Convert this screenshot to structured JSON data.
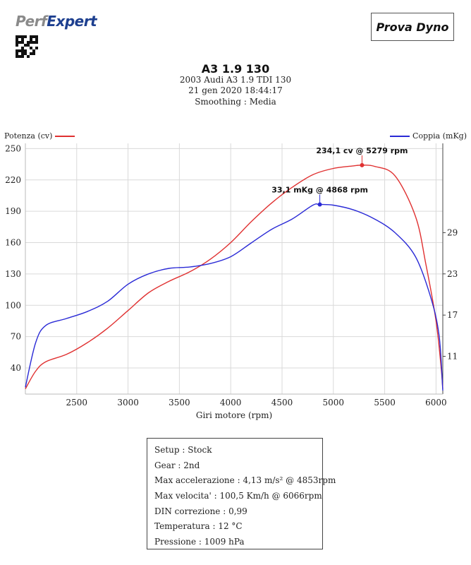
{
  "header": {
    "logo_part1": "Perf",
    "logo_part2": "Expert",
    "badge": "Prova Dyno",
    "title": "A3 1.9 130",
    "vehicle": "2003 Audi A3 1.9 TDI 130",
    "datetime": "21 gen 2020 18:44:17",
    "smoothing": "Smoothing : Media"
  },
  "colors": {
    "power": "#e03131",
    "torque": "#2a2ad6",
    "grid": "#d9d9d9"
  },
  "chart_data": {
    "type": "line",
    "xlabel": "Giri motore (rpm)",
    "x_ticks": [
      2500,
      3000,
      3500,
      4000,
      4500,
      5000,
      5500,
      6000
    ],
    "xlim": [
      2000,
      6066
    ],
    "y_left": {
      "label": "Potenza (cv)",
      "ticks": [
        40,
        70,
        100,
        130,
        160,
        190,
        220,
        250
      ],
      "ylim": [
        15,
        255
      ]
    },
    "y_right": {
      "label": "Coppia (mKg)",
      "ticks": [
        11,
        17,
        23,
        29
      ],
      "ylim": [
        5.5,
        42
      ]
    },
    "series": [
      {
        "name": "Potenza (cv)",
        "axis": "left",
        "x": [
          2000,
          2100,
          2200,
          2400,
          2600,
          2800,
          3000,
          3200,
          3400,
          3600,
          3800,
          4000,
          4200,
          4400,
          4600,
          4800,
          5000,
          5200,
          5279,
          5400,
          5600,
          5800,
          5900,
          6000,
          6050,
          6066
        ],
        "y": [
          20,
          37,
          46,
          53,
          64,
          78,
          95,
          112,
          123,
          132,
          144,
          160,
          180,
          198,
          213,
          225,
          231,
          233.5,
          234.1,
          233,
          224,
          185,
          140,
          85,
          40,
          20
        ]
      },
      {
        "name": "Coppia (mKg)",
        "axis": "right",
        "x": [
          2000,
          2100,
          2200,
          2400,
          2600,
          2800,
          3000,
          3200,
          3400,
          3600,
          3800,
          4000,
          4200,
          4400,
          4600,
          4800,
          4868,
          5000,
          5200,
          5400,
          5600,
          5800,
          5950,
          6030,
          6066
        ],
        "y": [
          6.5,
          13,
          15.5,
          16.5,
          17.5,
          19,
          21.5,
          23,
          23.8,
          24,
          24.5,
          25.5,
          27.5,
          29.5,
          31,
          33,
          33.1,
          33,
          32.3,
          31,
          29,
          25.5,
          19.5,
          14,
          6
        ]
      }
    ],
    "markers": [
      {
        "series": "Potenza (cv)",
        "x": 5279,
        "y": 234.1,
        "label": "234,1 cv @ 5279 rpm"
      },
      {
        "series": "Coppia (mKg)",
        "x": 4868,
        "y": 33.1,
        "label": "33,1 mKg @ 4868 rpm"
      }
    ],
    "grid": true
  },
  "info": [
    "Setup : Stock",
    "Gear : 2nd",
    "Max accelerazione : 4,13 m/s² @ 4853rpm",
    "Max velocita' : 100,5 Km/h @ 6066rpm",
    "DIN correzione : 0,99",
    "Temperatura : 12 °C",
    "Pressione : 1009 hPa"
  ]
}
